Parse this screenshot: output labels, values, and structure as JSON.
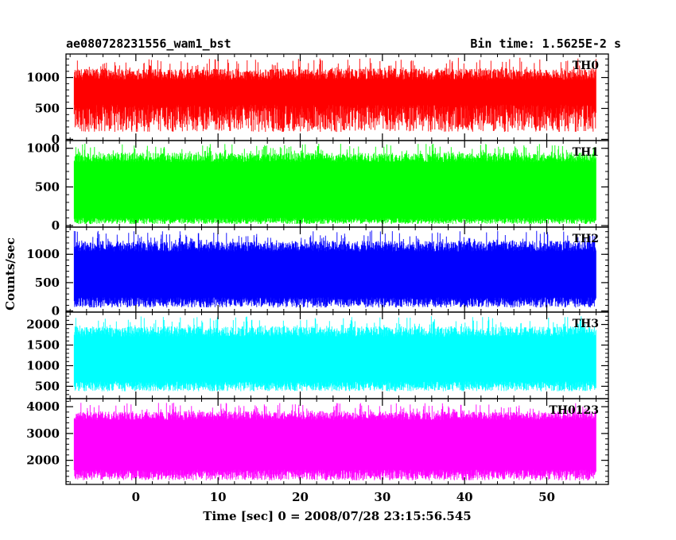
{
  "header": {
    "left_title": "ae080728231556_wam1_bst",
    "right_title": "Bin time: 1.5625E-2 s"
  },
  "chart_data": {
    "type": "line",
    "title": "ae080728231556_wam1_bst",
    "subtitle": "Bin time: 1.5625E-2 s",
    "xlabel": "Time [sec] 0 = 2008/07/28 23:15:56.545",
    "ylabel": "Counts/sec",
    "xlim": [
      -8.5,
      57.5
    ],
    "x_data_range": [
      -7.5,
      56
    ],
    "x_ticks": [
      0,
      10,
      20,
      30,
      40,
      50
    ],
    "grid": false,
    "panels": [
      {
        "name": "TH0",
        "color": "#ff0000",
        "ylim": [
          -20,
          1380
        ],
        "y_ticks": [
          0,
          500,
          1000
        ],
        "baseline_min": 120,
        "baseline_max": 560,
        "peak_low": 960,
        "peak_high": 1320
      },
      {
        "name": "TH1",
        "color": "#00ff00",
        "ylim": [
          -20,
          1100
        ],
        "y_ticks": [
          0,
          500,
          1000
        ],
        "baseline_min": 20,
        "baseline_max": 100,
        "peak_low": 820,
        "peak_high": 1060
      },
      {
        "name": "TH2",
        "color": "#0000ff",
        "ylim": [
          -20,
          1480
        ],
        "y_ticks": [
          0,
          500,
          1000
        ],
        "baseline_min": 60,
        "baseline_max": 240,
        "peak_low": 1050,
        "peak_high": 1420
      },
      {
        "name": "TH3",
        "color": "#00ffff",
        "ylim": [
          200,
          2300
        ],
        "y_ticks": [
          500,
          1000,
          1500,
          2000
        ],
        "baseline_min": 380,
        "baseline_max": 620,
        "peak_low": 1700,
        "peak_high": 2200
      },
      {
        "name": "TH0123",
        "color": "#ff00ff",
        "ylim": [
          1100,
          4300
        ],
        "y_ticks": [
          2000,
          3000,
          4000
        ],
        "baseline_min": 1250,
        "baseline_max": 1650,
        "peak_low": 3500,
        "peak_high": 4150
      }
    ]
  }
}
